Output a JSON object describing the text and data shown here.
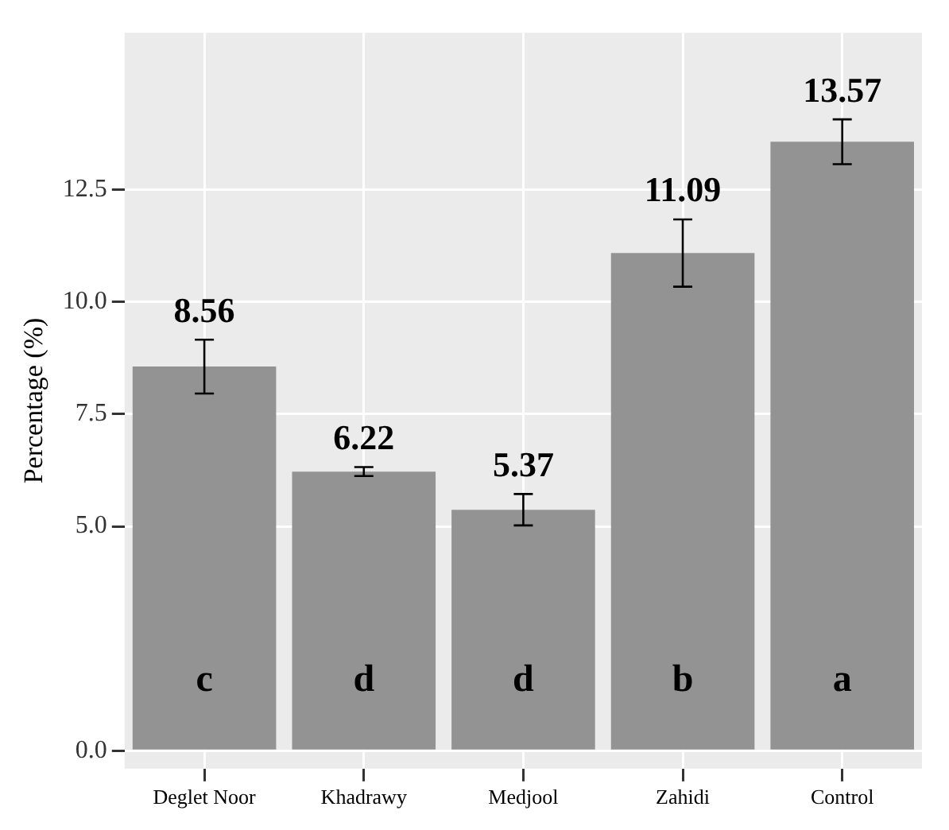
{
  "chart_data": {
    "type": "bar",
    "ylabel": "Percentage (%)",
    "categories": [
      "Deglet Noor",
      "Khadrawy",
      "Medjool",
      "Zahidi",
      "Control"
    ],
    "values": [
      8.56,
      6.22,
      5.37,
      11.09,
      13.57
    ],
    "color": "#939393",
    "errors": [
      0.6,
      0.1,
      0.35,
      0.75,
      0.5
    ],
    "data_labels": true,
    "ylim": [
      -0.4,
      16
    ],
    "yticks": [
      {
        "value": 0,
        "label": "0.0"
      },
      {
        "value": 5,
        "label": "5.0"
      },
      {
        "value": 7.5,
        "label": "7.5"
      },
      {
        "value": 10,
        "label": "10.0"
      },
      {
        "value": 12.5,
        "label": "12.5"
      }
    ],
    "grid": true,
    "annotations": [
      "c",
      "d",
      "d",
      "b",
      "a"
    ]
  }
}
